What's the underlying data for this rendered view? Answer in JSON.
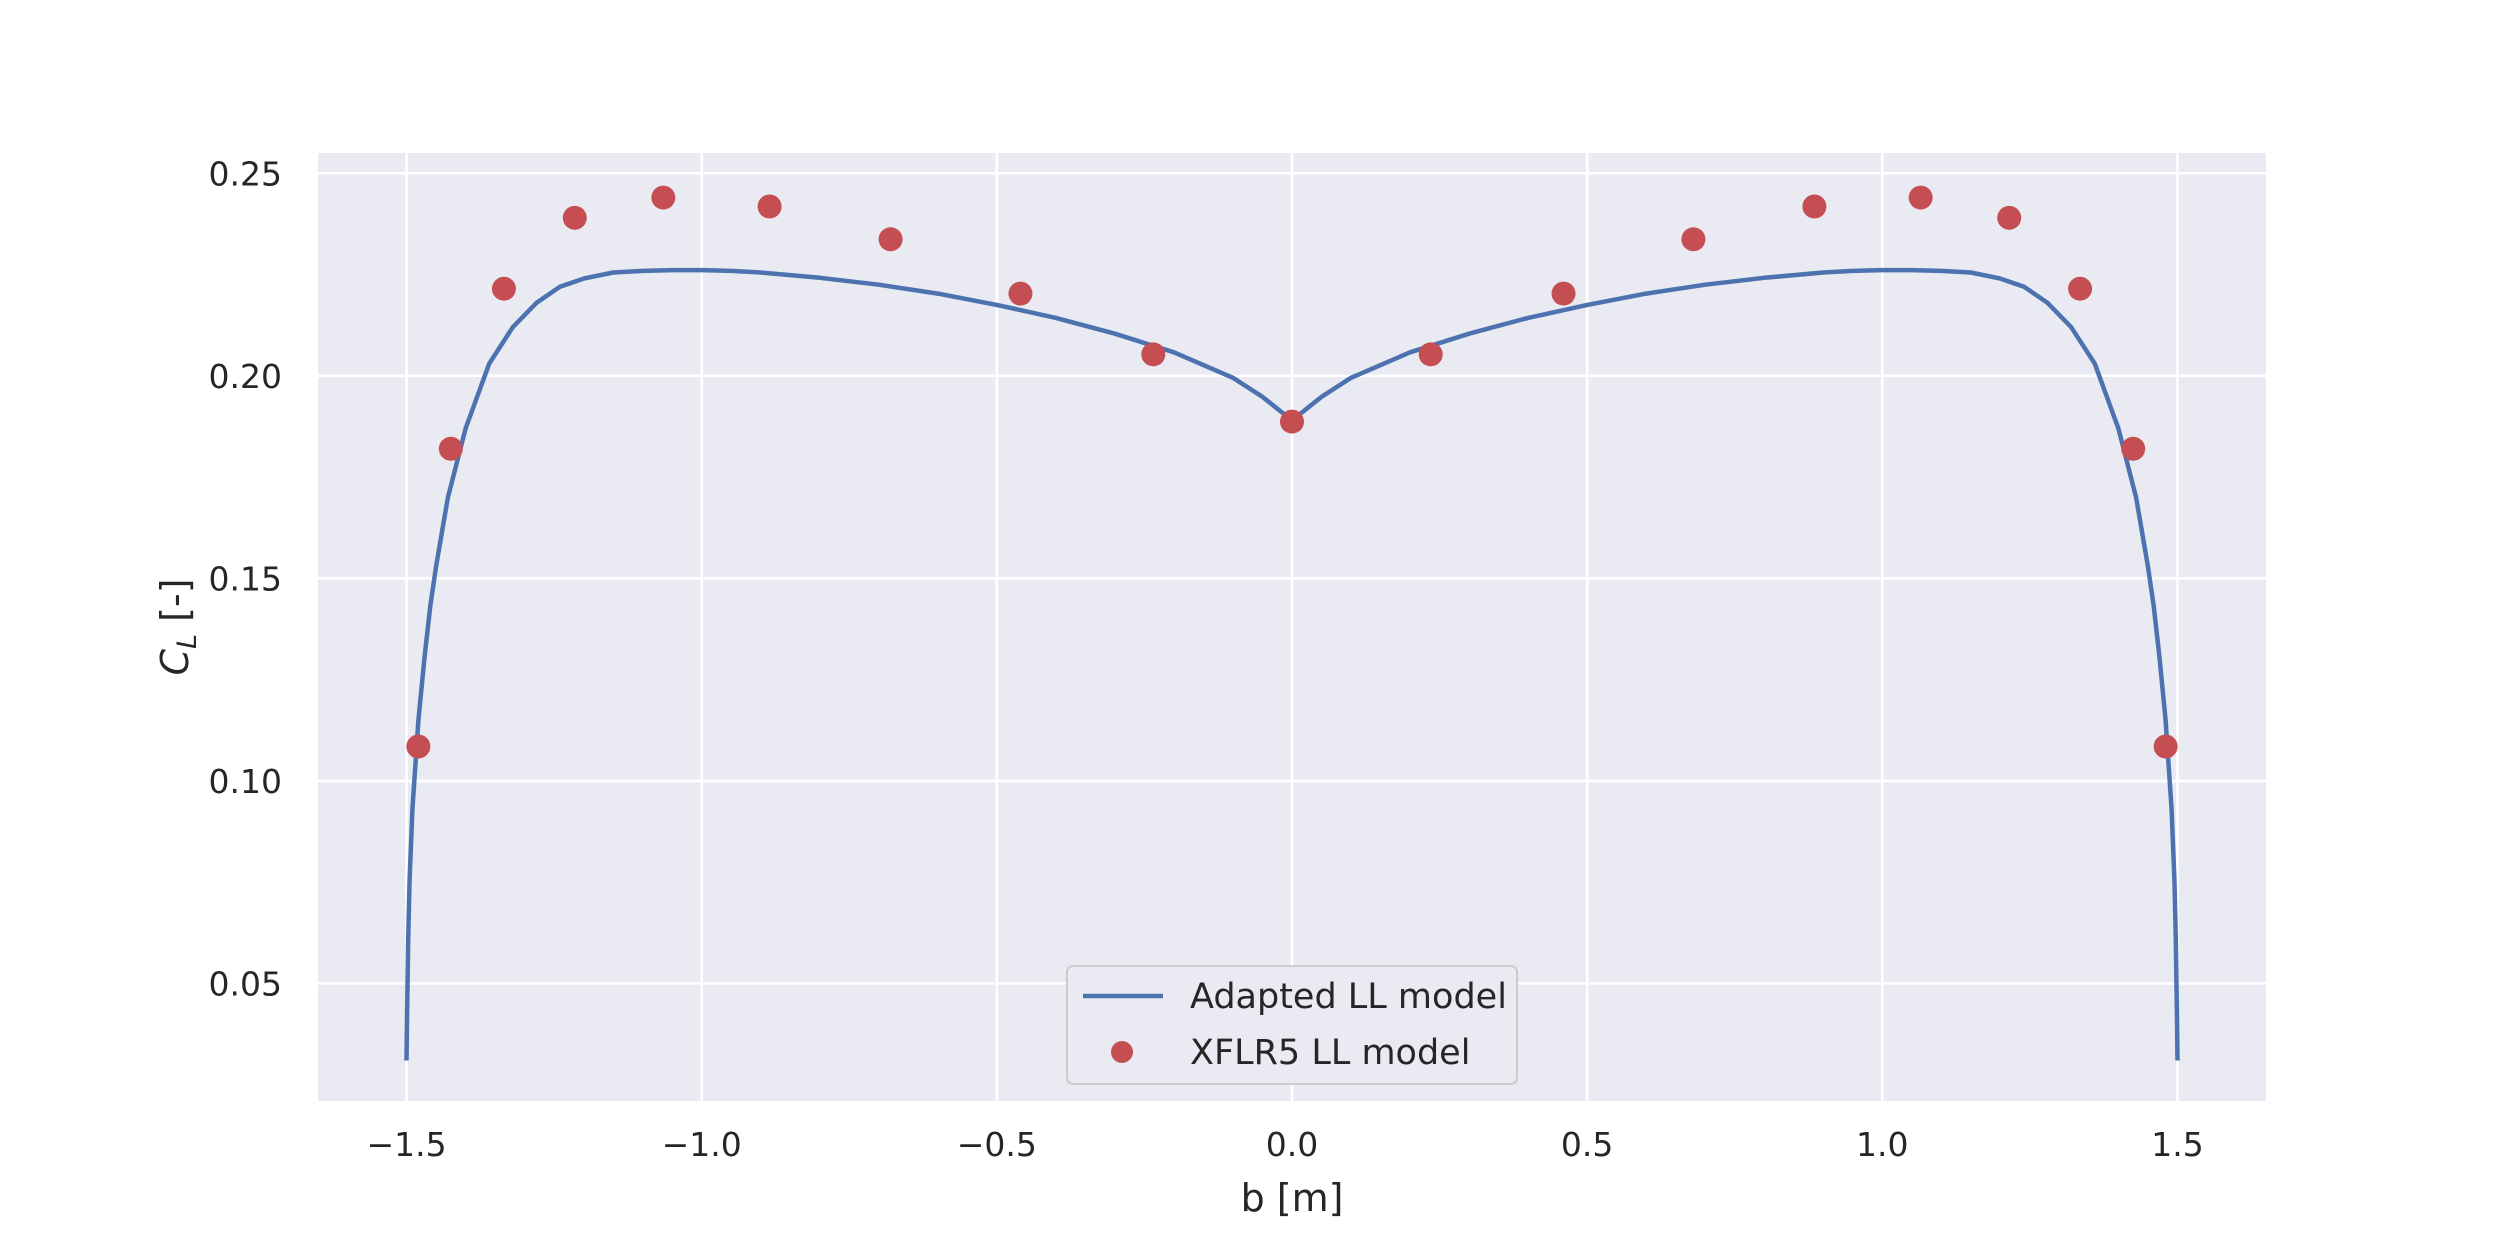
{
  "chart_data": {
    "type": "line",
    "title": "",
    "xlabel": "b [m]",
    "ylabel": {
      "main": "C",
      "sub": "L",
      "unit": " [-]"
    },
    "xlim": [
      -1.65,
      1.65
    ],
    "ylim": [
      0.021,
      0.255
    ],
    "xticks": [
      -1.5,
      -1.0,
      -0.5,
      0.0,
      0.5,
      1.0,
      1.5
    ],
    "xtick_labels": [
      "−1.5",
      "−1.0",
      "−0.5",
      "0.0",
      "0.5",
      "1.0",
      "1.5"
    ],
    "yticks": [
      0.05,
      0.1,
      0.15,
      0.2,
      0.25
    ],
    "ytick_labels": [
      "0.05",
      "0.10",
      "0.15",
      "0.20",
      "0.25"
    ],
    "grid": true,
    "legend_position": "bottom-center",
    "series": [
      {
        "name": "Adapted LL model",
        "kind": "line",
        "color": "#4c72b0",
        "x": [
          -1.5,
          -1.499,
          -1.497,
          -1.495,
          -1.49,
          -1.48,
          -1.47,
          -1.46,
          -1.45,
          -1.43,
          -1.4,
          -1.36,
          -1.32,
          -1.28,
          -1.24,
          -1.2,
          -1.15,
          -1.1,
          -1.05,
          -1.0,
          -0.95,
          -0.9,
          -0.8,
          -0.7,
          -0.6,
          -0.5,
          -0.4,
          -0.3,
          -0.2,
          -0.1,
          -0.05,
          0.0,
          0.05,
          0.1,
          0.2,
          0.3,
          0.4,
          0.5,
          0.6,
          0.7,
          0.8,
          0.9,
          0.95,
          1.0,
          1.05,
          1.1,
          1.15,
          1.2,
          1.24,
          1.28,
          1.32,
          1.36,
          1.4,
          1.43,
          1.45,
          1.46,
          1.47,
          1.48,
          1.49,
          1.495,
          1.497,
          1.499,
          1.5
        ],
        "y": [
          0.031,
          0.043,
          0.062,
          0.075,
          0.093,
          0.115,
          0.13,
          0.143,
          0.153,
          0.17,
          0.187,
          0.203,
          0.212,
          0.218,
          0.222,
          0.224,
          0.2255,
          0.2259,
          0.2261,
          0.2261,
          0.2259,
          0.2255,
          0.2242,
          0.2225,
          0.2203,
          0.2175,
          0.2143,
          0.2104,
          0.2058,
          0.1995,
          0.1948,
          0.189,
          0.1948,
          0.1995,
          0.2058,
          0.2104,
          0.2143,
          0.2175,
          0.2203,
          0.2225,
          0.2242,
          0.2255,
          0.2259,
          0.2261,
          0.2261,
          0.2259,
          0.2255,
          0.224,
          0.222,
          0.218,
          0.212,
          0.203,
          0.187,
          0.17,
          0.153,
          0.143,
          0.13,
          0.115,
          0.093,
          0.075,
          0.062,
          0.043,
          0.031
        ]
      },
      {
        "name": "XFLR5 LL model",
        "kind": "scatter",
        "color": "#c44e52",
        "x": [
          -1.48,
          -1.425,
          -1.335,
          -1.215,
          -1.065,
          -0.885,
          -0.68,
          -0.46,
          -0.235,
          0.0,
          0.235,
          0.46,
          0.68,
          0.885,
          1.065,
          1.215,
          1.335,
          1.425,
          1.48
        ],
        "y": [
          0.1085,
          0.182,
          0.2215,
          0.239,
          0.244,
          0.2418,
          0.2337,
          0.2203,
          0.2053,
          0.1887,
          0.2053,
          0.2203,
          0.2337,
          0.2418,
          0.244,
          0.239,
          0.2215,
          0.182,
          0.1085
        ]
      }
    ]
  }
}
